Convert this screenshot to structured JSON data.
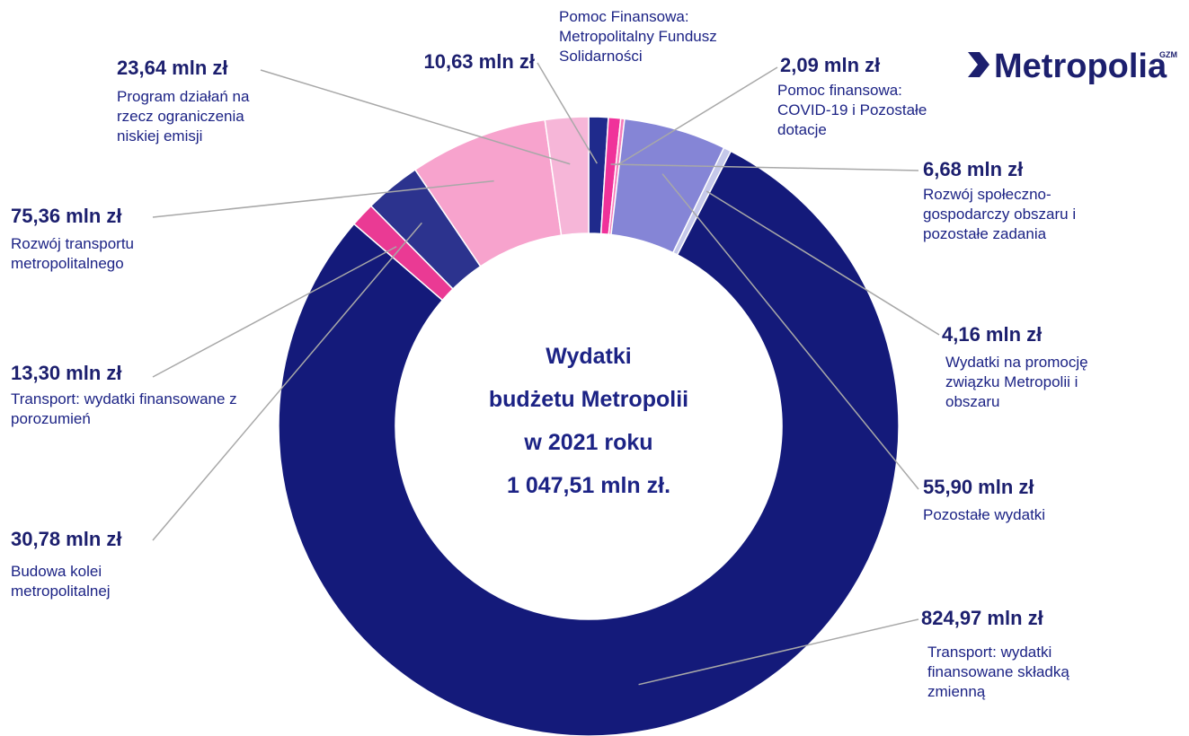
{
  "chart_data": {
    "type": "pie",
    "donut": true,
    "categories": [
      "Pomoc Finansowa: Metropolitalny Fundusz Solidarności",
      "Rozwój społeczno-gospodarczy obszaru i pozostałe zadania",
      "Pomoc finansowa: COVID-19 i Pozostałe dotacje",
      "Pozostałe wydatki",
      "Wydatki na promocję związku Metropolii i obszaru",
      "Transport: wydatki finansowane składką zmienną",
      "Transport: wydatki finansowane z porozumień",
      "Budowa kolei metropolitalnej",
      "Rozwój transportu metropolitalnego",
      "Program działań na rzecz ograniczenia niskiej emisji"
    ],
    "values": [
      10.63,
      6.68,
      2.09,
      55.9,
      4.16,
      824.97,
      13.3,
      30.78,
      75.36,
      23.64
    ],
    "value_labels": [
      "10,63 mln zł",
      "6,68 mln zł",
      "2,09 mln zł",
      "55,90 mln zł",
      "4,16 mln zł",
      "824,97 mln zł",
      "13,30 mln zł",
      "30,78 mln zł",
      "75,36 mln zł",
      "23,64 mln zł"
    ],
    "colors": [
      "#1f2a8c",
      "#f0329a",
      "#f57dbd",
      "#8585d6",
      "#c5c8ea",
      "#141a7a",
      "#ea3a94",
      "#2c338e",
      "#f7a3cd",
      "#f6b6d8"
    ],
    "center_lines": [
      "Wydatki",
      "budżetu Metropolii",
      "w 2021 roku",
      "1 047,51 mln zł."
    ],
    "logo": {
      "text": "Metropolia",
      "sup": "GZM"
    }
  }
}
